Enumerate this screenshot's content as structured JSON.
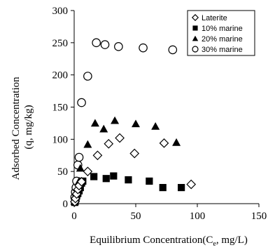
{
  "chart_data": {
    "type": "scatter",
    "xlabel_main": "Equilibrium Concentration(C",
    "xlabel_sub": "e",
    "xlabel_tail": ", mg/L)",
    "ylabel_line1": "Adsorbed Concentration",
    "ylabel_line2": "(q, mg/kg)",
    "xlim": [
      0,
      150
    ],
    "ylim": [
      0,
      300
    ],
    "x_ticks": [
      "0",
      "50",
      "100",
      "150"
    ],
    "y_ticks": [
      "0",
      "50",
      "100",
      "150",
      "200",
      "250",
      "300"
    ],
    "grid": false,
    "legend_position": "top-right",
    "series": [
      {
        "name": "Laterite",
        "marker": "open-diamond",
        "color": "#000000",
        "points": [
          [
            0.5,
            3
          ],
          [
            1,
            8
          ],
          [
            2,
            15
          ],
          [
            3,
            22
          ],
          [
            4,
            28
          ],
          [
            6,
            34
          ],
          [
            11,
            50
          ],
          [
            19,
            75
          ],
          [
            28,
            93
          ],
          [
            37,
            102
          ],
          [
            49,
            78
          ],
          [
            73,
            94
          ],
          [
            95,
            30
          ]
        ]
      },
      {
        "name": "10% marine",
        "marker": "filled-square",
        "color": "#000000",
        "points": [
          [
            0.5,
            2
          ],
          [
            1,
            5
          ],
          [
            1.5,
            8
          ],
          [
            2,
            12
          ],
          [
            3,
            16
          ],
          [
            4,
            20
          ],
          [
            5,
            25
          ],
          [
            6,
            32
          ],
          [
            7,
            35
          ],
          [
            16,
            42
          ],
          [
            32,
            43
          ],
          [
            26,
            39
          ],
          [
            44,
            37
          ],
          [
            61,
            35
          ],
          [
            72,
            25
          ],
          [
            87,
            25
          ]
        ]
      },
      {
        "name": "20% marine",
        "marker": "filled-triangle",
        "color": "#000000",
        "points": [
          [
            0.5,
            3
          ],
          [
            1,
            8
          ],
          [
            2,
            15
          ],
          [
            3,
            25
          ],
          [
            4,
            35
          ],
          [
            5,
            55
          ],
          [
            11,
            92
          ],
          [
            17,
            125
          ],
          [
            24,
            116
          ],
          [
            33,
            129
          ],
          [
            50,
            124
          ],
          [
            66,
            120
          ],
          [
            83,
            95
          ]
        ]
      },
      {
        "name": "30% marine",
        "marker": "open-circle",
        "color": "#000000",
        "points": [
          [
            0.5,
            10
          ],
          [
            1,
            18
          ],
          [
            1.5,
            25
          ],
          [
            2,
            35
          ],
          [
            3,
            60
          ],
          [
            4,
            72
          ],
          [
            6,
            157
          ],
          [
            11,
            198
          ],
          [
            18,
            250
          ],
          [
            25,
            247
          ],
          [
            36,
            244
          ],
          [
            56,
            242
          ],
          [
            80,
            239
          ]
        ]
      }
    ]
  }
}
